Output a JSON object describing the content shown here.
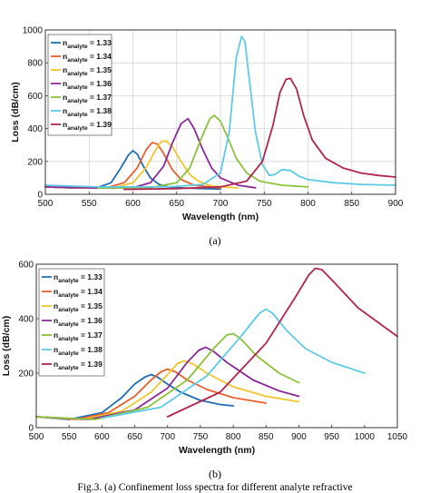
{
  "figure": {
    "caption_a": "(a)",
    "caption_b": "(b)",
    "caption_text": "Fig.3. (a) Confinement loss spectra for different analyte refractive"
  },
  "colors": [
    "#1f6fb5",
    "#e8602c",
    "#eec72f",
    "#8a2a9a",
    "#8cc33a",
    "#5ecbe6",
    "#b3254e"
  ],
  "chart_data": [
    {
      "type": "line",
      "title": "",
      "xlabel": "Wavelength (nm)",
      "ylabel": "Loss (dB/cm)",
      "xlim": [
        500,
        900
      ],
      "ylim": [
        0,
        1000
      ],
      "xticks": [
        500,
        550,
        600,
        650,
        700,
        750,
        800,
        850,
        900
      ],
      "yticks": [
        0,
        200,
        400,
        600,
        800,
        1000
      ],
      "grid": true,
      "legend": "top-left",
      "series": [
        {
          "name": "n_analyte = 1.33",
          "x": [
            500,
            530,
            560,
            575,
            585,
            595,
            600,
            605,
            612,
            620,
            630,
            640,
            660,
            680,
            700
          ],
          "y": [
            45,
            38,
            42,
            70,
            150,
            240,
            265,
            245,
            170,
            100,
            60,
            45,
            38,
            35,
            32
          ]
        },
        {
          "name": "n_analyte = 1.34",
          "x": [
            500,
            540,
            570,
            590,
            605,
            615,
            622,
            628,
            635,
            645,
            655,
            670,
            700
          ],
          "y": [
            45,
            38,
            40,
            70,
            160,
            270,
            315,
            305,
            250,
            150,
            90,
            55,
            38
          ]
        },
        {
          "name": "n_analyte = 1.35",
          "x": [
            500,
            550,
            580,
            600,
            615,
            625,
            632,
            638,
            645,
            655,
            665,
            675,
            690,
            720
          ],
          "y": [
            45,
            38,
            40,
            70,
            160,
            260,
            320,
            325,
            290,
            200,
            120,
            80,
            50,
            38
          ]
        },
        {
          "name": "n_analyte = 1.36",
          "x": [
            500,
            560,
            600,
            620,
            635,
            645,
            655,
            663,
            670,
            680,
            690,
            700,
            720,
            740
          ],
          "y": [
            45,
            38,
            40,
            70,
            170,
            310,
            430,
            460,
            400,
            270,
            160,
            100,
            55,
            40
          ]
        },
        {
          "name": "n_analyte = 1.37",
          "x": [
            560,
            620,
            650,
            665,
            678,
            688,
            693,
            700,
            708,
            718,
            730,
            745,
            770,
            800
          ],
          "y": [
            38,
            40,
            70,
            160,
            340,
            460,
            480,
            445,
            350,
            220,
            130,
            80,
            55,
            45
          ]
        },
        {
          "name": "n_analyte = 1.38",
          "x": [
            500,
            560,
            640,
            680,
            700,
            710,
            718,
            724,
            728,
            733,
            740,
            748,
            756,
            762,
            770,
            780,
            790,
            800,
            830,
            860,
            900
          ],
          "y": [
            55,
            45,
            45,
            60,
            130,
            380,
            830,
            960,
            930,
            700,
            380,
            180,
            115,
            120,
            150,
            145,
            110,
            90,
            70,
            60,
            55
          ]
        },
        {
          "name": "n_analyte = 1.39",
          "x": [
            590,
            650,
            700,
            730,
            748,
            760,
            768,
            775,
            780,
            787,
            795,
            805,
            820,
            840,
            860,
            880,
            900
          ],
          "y": [
            30,
            35,
            45,
            80,
            200,
            420,
            620,
            700,
            705,
            640,
            480,
            330,
            220,
            160,
            130,
            115,
            105
          ]
        }
      ]
    },
    {
      "type": "line",
      "title": "",
      "xlabel": "Wavelength (nm)",
      "ylabel": "Loss (dB/cm)",
      "xlim": [
        500,
        1050
      ],
      "ylim": [
        0,
        600
      ],
      "xticks": [
        500,
        550,
        600,
        650,
        700,
        750,
        800,
        850,
        900,
        950,
        1000,
        1050
      ],
      "yticks": [
        0,
        200,
        400,
        600
      ],
      "grid": false,
      "legend": "top-left",
      "series": [
        {
          "name": "n_analyte = 1.33",
          "x": [
            500,
            550,
            600,
            630,
            650,
            665,
            675,
            685,
            700,
            720,
            750,
            780,
            800
          ],
          "y": [
            40,
            30,
            55,
            110,
            160,
            185,
            195,
            185,
            160,
            130,
            100,
            85,
            80
          ]
        },
        {
          "name": "n_analyte = 1.34",
          "x": [
            500,
            560,
            610,
            650,
            675,
            690,
            700,
            712,
            730,
            760,
            800,
            850
          ],
          "y": [
            40,
            30,
            55,
            115,
            175,
            205,
            215,
            205,
            175,
            140,
            110,
            90
          ]
        },
        {
          "name": "n_analyte = 1.35",
          "x": [
            500,
            570,
            630,
            675,
            700,
            715,
            725,
            738,
            760,
            800,
            850,
            900
          ],
          "y": [
            40,
            30,
            60,
            130,
            195,
            235,
            245,
            235,
            200,
            150,
            115,
            95
          ]
        },
        {
          "name": "n_analyte = 1.36",
          "x": [
            500,
            580,
            650,
            700,
            730,
            748,
            758,
            770,
            790,
            830,
            870,
            900
          ],
          "y": [
            40,
            30,
            65,
            145,
            240,
            285,
            295,
            280,
            240,
            175,
            135,
            115
          ]
        },
        {
          "name": "n_analyte = 1.37",
          "x": [
            500,
            590,
            670,
            730,
            770,
            790,
            800,
            812,
            835,
            870,
            900
          ],
          "y": [
            40,
            30,
            75,
            175,
            290,
            340,
            345,
            325,
            265,
            200,
            165
          ]
        },
        {
          "name": "n_analyte = 1.38",
          "x": [
            600,
            690,
            760,
            810,
            840,
            850,
            860,
            880,
            910,
            950,
            1000
          ],
          "y": [
            35,
            75,
            190,
            330,
            420,
            435,
            420,
            360,
            290,
            240,
            200
          ]
        },
        {
          "name": "n_analyte = 1.39",
          "x": [
            700,
            780,
            850,
            895,
            915,
            925,
            935,
            955,
            990,
            1030,
            1050
          ],
          "y": [
            40,
            130,
            310,
            480,
            560,
            585,
            580,
            530,
            440,
            370,
            335
          ]
        }
      ]
    }
  ]
}
